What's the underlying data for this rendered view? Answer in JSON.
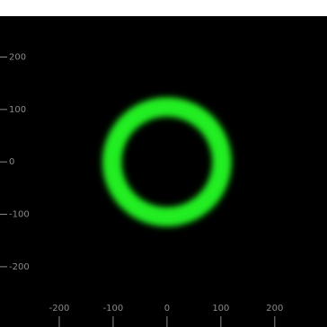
{
  "chart_data": {
    "type": "ring",
    "xlim": [
      -310,
      297
    ],
    "ylim": [
      -315,
      278
    ],
    "xticks": [
      -200,
      -100,
      0,
      100,
      200
    ],
    "yticks": [
      200,
      100,
      0,
      -100,
      -200
    ],
    "ring": {
      "center": [
        0,
        0
      ],
      "radius": 102,
      "width": 34,
      "color": "#22ee22"
    },
    "background": "#000000"
  }
}
